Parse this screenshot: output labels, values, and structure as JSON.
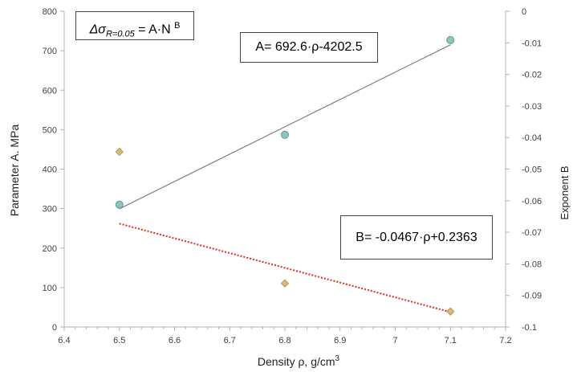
{
  "chart_data": {
    "type": "scatter",
    "xlabel": "Density ρ, g/cm",
    "xlabel_sup": "3",
    "ylabel": "Parameter A. MPa",
    "y2label": "Exponent B",
    "xlim": [
      6.4,
      7.2
    ],
    "ylim": [
      0,
      800
    ],
    "y2lim": [
      -0.1,
      0
    ],
    "x_ticks": [
      6.4,
      6.5,
      6.6,
      6.7,
      6.8,
      6.9,
      7,
      7.1,
      7.2
    ],
    "x_tick_labels": [
      "6.4",
      "6.5",
      "6.6",
      "6.7",
      "6.8",
      "6.9",
      "7",
      "7.1",
      "7.2"
    ],
    "y_ticks": [
      0,
      100,
      200,
      300,
      400,
      500,
      600,
      700,
      800
    ],
    "y_tick_labels": [
      "0",
      "100",
      "200",
      "300",
      "400",
      "500",
      "600",
      "700",
      "800"
    ],
    "y2_ticks": [
      0,
      -0.01,
      -0.02,
      -0.03,
      -0.04,
      -0.05,
      -0.06,
      -0.07,
      -0.08,
      -0.09,
      -0.1
    ],
    "y2_tick_labels": [
      "0",
      "-0.01",
      "-0.02",
      "-0.03",
      "-0.04",
      "-0.05",
      "-0.06",
      "-0.07",
      "-0.08",
      "-0.09",
      "-0.1"
    ],
    "grid": false,
    "series": [
      {
        "axis": "left",
        "marker": "circle",
        "color": "#8fc7b4",
        "edge_color": "#5f8fb0",
        "x": [
          6.5,
          6.8,
          7.1
        ],
        "y": [
          310,
          487,
          727
        ],
        "trend": {
          "slope": 692.6,
          "intercept": -4202.5,
          "color": "#7f7f7f",
          "style": "solid"
        }
      },
      {
        "axis": "right",
        "marker": "diamond",
        "color": "#d8bc78",
        "edge_color": "#b89a55",
        "x": [
          6.5,
          6.8,
          7.1
        ],
        "y": [
          -0.0445,
          -0.0862,
          -0.0951
        ],
        "trend": {
          "slope": -0.0467,
          "intercept": 0.2363,
          "color": "#e8271e",
          "style": "dotted"
        }
      }
    ],
    "annotations": {
      "formula_lhs": "Δσ",
      "formula_sub": "R=0.05",
      "formula_rhs": " = A·N ",
      "formula_sup": "B",
      "eq_a": "A= 692.6·ρ-4202.5",
      "eq_b": "B= -0.0467·ρ+0.2363"
    }
  }
}
